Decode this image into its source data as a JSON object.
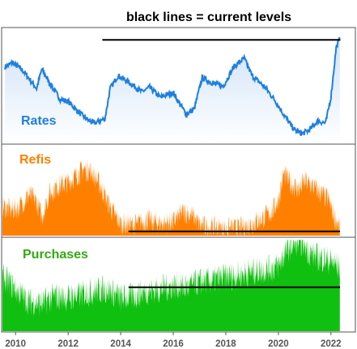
{
  "title": "black lines = current levels",
  "colors": {
    "rates": "#1f7fe0",
    "rates_fill_top": "#cfe2f7",
    "rates_fill_bottom": "#ffffff",
    "refis": "#ff8000",
    "purchases": "#10c010",
    "purchases_label": "#33aa11",
    "level_line": "#000000",
    "panel_border": "#555555",
    "tick_text": "#555555"
  },
  "chart_data": {
    "type": "area",
    "x_axis": {
      "ticks": [
        "2010",
        "2012",
        "2014",
        "2016",
        "2018",
        "2020",
        "2022"
      ],
      "range": [
        2009.5,
        2022.9
      ]
    },
    "panels": [
      {
        "name": "Rates",
        "type": "line",
        "fill": "gradient",
        "x": [
          2009.6,
          2009.9,
          2010.3,
          2010.8,
          2011.0,
          2011.3,
          2011.7,
          2012.0,
          2012.4,
          2012.8,
          2013.0,
          2013.4,
          2013.6,
          2013.9,
          2014.3,
          2014.8,
          2015.1,
          2015.5,
          2016.0,
          2016.5,
          2016.8,
          2017.1,
          2017.5,
          2017.9,
          2018.3,
          2018.7,
          2019.0,
          2019.5,
          2019.9,
          2020.2,
          2020.6,
          2020.9,
          2021.2,
          2021.5,
          2021.8,
          2022.0,
          2022.2,
          2022.35
        ],
        "y": [
          70,
          74,
          66,
          50,
          68,
          55,
          40,
          38,
          28,
          20,
          18,
          22,
          50,
          62,
          56,
          47,
          51,
          42,
          46,
          26,
          31,
          60,
          55,
          52,
          70,
          78,
          62,
          51,
          38,
          26,
          12,
          8,
          12,
          20,
          18,
          42,
          88,
          97
        ],
        "level": 95,
        "level_x_start": 2013.3
      },
      {
        "name": "Refis",
        "type": "area",
        "x": [
          2009.5,
          2009.8,
          2010.1,
          2010.5,
          2010.8,
          2011.0,
          2011.3,
          2011.6,
          2012.0,
          2012.3,
          2012.6,
          2012.9,
          2013.2,
          2013.5,
          2013.8,
          2014.0,
          2014.5,
          2015.0,
          2015.2,
          2015.6,
          2016.0,
          2016.4,
          2016.8,
          2017.0,
          2017.5,
          2018.0,
          2018.5,
          2019.0,
          2019.5,
          2019.8,
          2020.0,
          2020.2,
          2020.5,
          2020.8,
          2021.0,
          2021.3,
          2021.6,
          2021.9,
          2022.1,
          2022.3,
          2022.35
        ],
        "y": [
          35,
          30,
          32,
          48,
          40,
          22,
          50,
          58,
          62,
          70,
          78,
          74,
          60,
          40,
          22,
          14,
          12,
          18,
          16,
          14,
          16,
          28,
          22,
          12,
          9,
          8,
          8,
          14,
          22,
          30,
          42,
          72,
          60,
          54,
          64,
          58,
          50,
          42,
          25,
          10,
          6
        ],
        "level": 5,
        "level_x_start": 2014.3
      },
      {
        "name": "Purchases",
        "type": "area",
        "x": [
          2009.5,
          2010.0,
          2010.5,
          2011.0,
          2011.5,
          2012.0,
          2012.5,
          2013.0,
          2013.5,
          2014.0,
          2014.5,
          2015.0,
          2015.5,
          2016.0,
          2016.5,
          2017.0,
          2017.5,
          2018.0,
          2018.5,
          2019.0,
          2019.5,
          2020.0,
          2020.3,
          2020.6,
          2020.9,
          2021.2,
          2021.5,
          2021.8,
          2022.1,
          2022.35
        ],
        "y": [
          62,
          48,
          34,
          32,
          40,
          38,
          42,
          46,
          48,
          38,
          40,
          46,
          48,
          52,
          50,
          56,
          58,
          62,
          64,
          68,
          70,
          74,
          92,
          100,
          102,
          90,
          84,
          82,
          78,
          72
        ],
        "level": 50,
        "level_x_start": 2014.3
      }
    ]
  }
}
